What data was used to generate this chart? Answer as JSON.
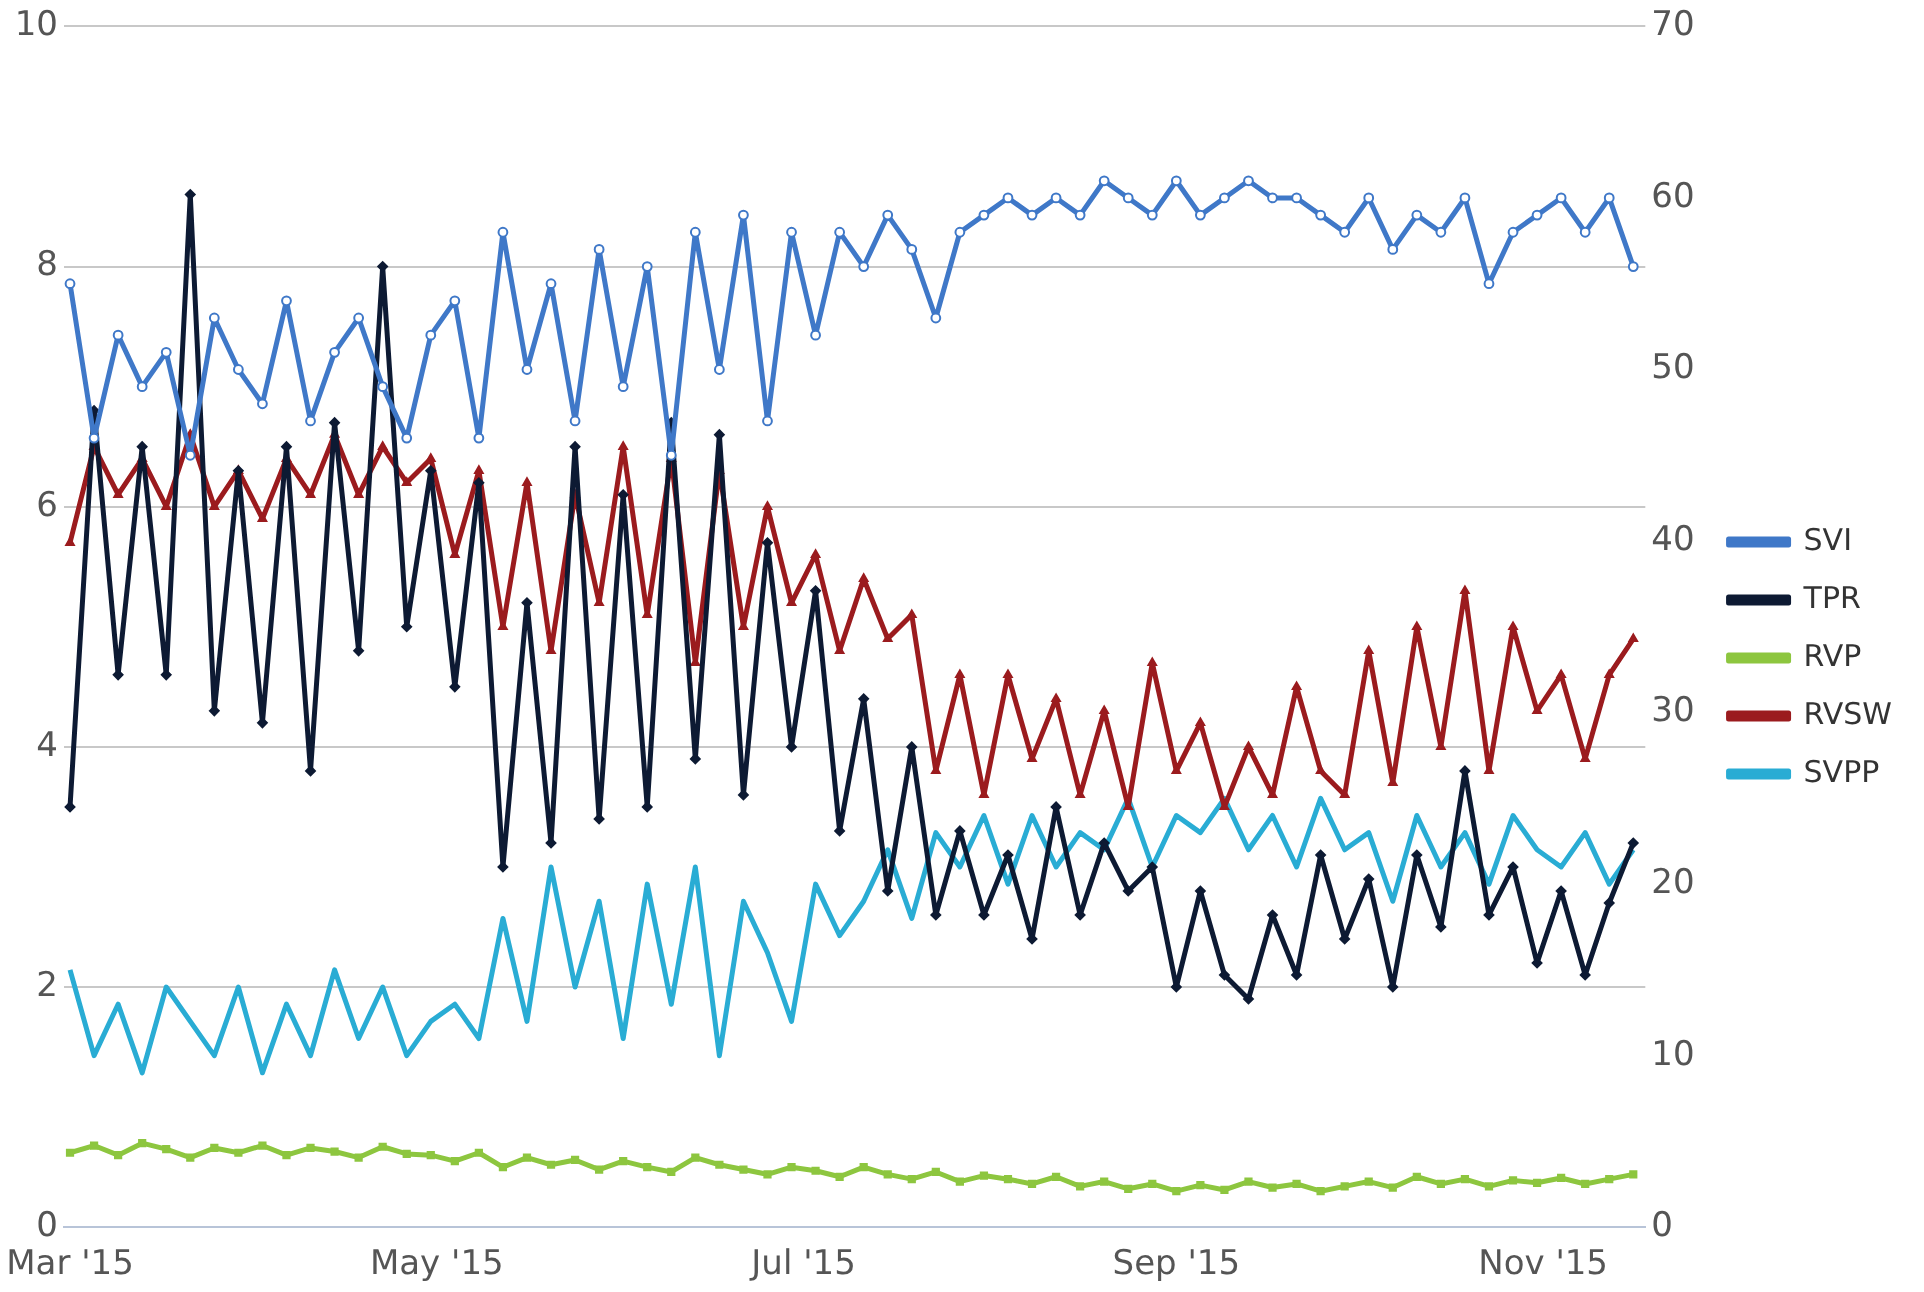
{
  "chart_data": {
    "type": "line",
    "x": [
      "2015-03-01",
      "2015-03-05",
      "2015-03-09",
      "2015-03-13",
      "2015-03-17",
      "2015-03-21",
      "2015-03-25",
      "2015-03-29",
      "2015-04-02",
      "2015-04-06",
      "2015-04-10",
      "2015-04-14",
      "2015-04-18",
      "2015-04-22",
      "2015-04-26",
      "2015-04-30",
      "2015-05-04",
      "2015-05-08",
      "2015-05-12",
      "2015-05-16",
      "2015-05-20",
      "2015-05-24",
      "2015-05-28",
      "2015-06-01",
      "2015-06-05",
      "2015-06-09",
      "2015-06-13",
      "2015-06-17",
      "2015-06-21",
      "2015-06-25",
      "2015-06-29",
      "2015-07-03",
      "2015-07-07",
      "2015-07-11",
      "2015-07-15",
      "2015-07-19",
      "2015-07-23",
      "2015-07-27",
      "2015-07-31",
      "2015-08-04",
      "2015-08-08",
      "2015-08-12",
      "2015-08-16",
      "2015-08-20",
      "2015-08-24",
      "2015-08-28",
      "2015-09-01",
      "2015-09-05",
      "2015-09-09",
      "2015-09-13",
      "2015-09-17",
      "2015-09-21",
      "2015-09-25",
      "2015-09-29",
      "2015-10-03",
      "2015-10-07",
      "2015-10-11",
      "2015-10-15",
      "2015-10-19",
      "2015-10-23",
      "2015-10-27",
      "2015-10-31",
      "2015-11-04",
      "2015-11-08",
      "2015-11-12",
      "2015-11-16"
    ],
    "series": [
      {
        "name": "SVI",
        "color": "#3f78c8",
        "axis": "y2",
        "marker": "circle",
        "values": [
          55,
          46,
          52,
          49,
          51,
          45,
          53,
          50,
          48,
          54,
          47,
          51,
          53,
          49,
          46,
          52,
          54,
          46,
          58,
          50,
          55,
          47,
          57,
          49,
          56,
          45,
          58,
          50,
          59,
          47,
          58,
          52,
          58,
          56,
          59,
          57,
          53,
          58,
          59,
          60,
          59,
          60,
          59,
          61,
          60,
          59,
          61,
          59,
          60,
          61,
          60,
          60,
          59,
          58,
          60,
          57,
          59,
          58,
          60,
          55,
          58,
          59,
          60,
          58,
          60,
          56
        ]
      },
      {
        "name": "TPR",
        "color": "#0d1a33",
        "axis": "y",
        "marker": "diamond",
        "values": [
          3.5,
          6.8,
          4.6,
          6.5,
          4.6,
          8.6,
          4.3,
          6.3,
          4.2,
          6.5,
          3.8,
          6.7,
          4.8,
          8.0,
          5.0,
          6.3,
          4.5,
          6.2,
          3.0,
          5.2,
          3.2,
          6.5,
          3.4,
          6.1,
          3.5,
          6.7,
          3.9,
          6.6,
          3.6,
          5.7,
          4.0,
          5.3,
          3.3,
          4.4,
          2.8,
          4.0,
          2.6,
          3.3,
          2.6,
          3.1,
          2.4,
          3.5,
          2.6,
          3.2,
          2.8,
          3.0,
          2.0,
          2.8,
          2.1,
          1.9,
          2.6,
          2.1,
          3.1,
          2.4,
          2.9,
          2.0,
          3.1,
          2.5,
          3.8,
          2.6,
          3.0,
          2.2,
          2.8,
          2.1,
          2.7,
          3.2
        ]
      },
      {
        "name": "RVP",
        "color": "#8dc63f",
        "axis": "y",
        "marker": "square",
        "values": [
          0.62,
          0.68,
          0.6,
          0.7,
          0.65,
          0.58,
          0.66,
          0.62,
          0.68,
          0.6,
          0.66,
          0.63,
          0.58,
          0.67,
          0.61,
          0.6,
          0.55,
          0.62,
          0.5,
          0.58,
          0.52,
          0.56,
          0.48,
          0.55,
          0.5,
          0.46,
          0.58,
          0.52,
          0.48,
          0.44,
          0.5,
          0.47,
          0.42,
          0.5,
          0.44,
          0.4,
          0.46,
          0.38,
          0.43,
          0.4,
          0.36,
          0.42,
          0.34,
          0.38,
          0.32,
          0.36,
          0.3,
          0.35,
          0.31,
          0.38,
          0.33,
          0.36,
          0.3,
          0.34,
          0.38,
          0.33,
          0.42,
          0.36,
          0.4,
          0.34,
          0.39,
          0.37,
          0.41,
          0.36,
          0.4,
          0.44
        ]
      },
      {
        "name": "RVSW",
        "color": "#9b1b1e",
        "axis": "y",
        "marker": "triangle",
        "values": [
          5.7,
          6.5,
          6.1,
          6.4,
          6.0,
          6.6,
          6.0,
          6.3,
          5.9,
          6.4,
          6.1,
          6.6,
          6.1,
          6.5,
          6.2,
          6.4,
          5.6,
          6.3,
          5.0,
          6.2,
          4.8,
          6.1,
          5.2,
          6.5,
          5.1,
          6.4,
          4.7,
          6.3,
          5.0,
          6.0,
          5.2,
          5.6,
          4.8,
          5.4,
          4.9,
          5.1,
          3.8,
          4.6,
          3.6,
          4.6,
          3.9,
          4.4,
          3.6,
          4.3,
          3.5,
          4.7,
          3.8,
          4.2,
          3.5,
          4.0,
          3.6,
          4.5,
          3.8,
          3.6,
          4.8,
          3.7,
          5.0,
          4.0,
          5.3,
          3.8,
          5.0,
          4.3,
          4.6,
          3.9,
          4.6,
          4.9
        ]
      },
      {
        "name": "SVPP",
        "color": "#29acd4",
        "axis": "y2",
        "marker": "none",
        "values": [
          15,
          10,
          13,
          9,
          14,
          12,
          10,
          14,
          9,
          13,
          10,
          15,
          11,
          14,
          10,
          12,
          13,
          11,
          18,
          12,
          21,
          14,
          19,
          11,
          20,
          13,
          21,
          10,
          19,
          16,
          12,
          20,
          17,
          19,
          22,
          18,
          23,
          21,
          24,
          20,
          24,
          21,
          23,
          22,
          25,
          21,
          24,
          23,
          25,
          22,
          24,
          21,
          25,
          22,
          23,
          19,
          24,
          21,
          23,
          20,
          24,
          22,
          21,
          23,
          20,
          22
        ]
      }
    ],
    "xlim": [
      "2015-02-28",
      "2015-11-18"
    ],
    "xticks": [
      {
        "value": "2015-03-01",
        "label": "Mar '15"
      },
      {
        "value": "2015-05-01",
        "label": "May '15"
      },
      {
        "value": "2015-07-01",
        "label": "Jul '15"
      },
      {
        "value": "2015-09-01",
        "label": "Sep '15"
      },
      {
        "value": "2015-11-01",
        "label": "Nov '15"
      }
    ],
    "ylim": [
      0,
      10
    ],
    "yticks": [
      0,
      2,
      4,
      6,
      8,
      10
    ],
    "y2lim": [
      0,
      70
    ],
    "y2ticks": [
      0,
      10,
      20,
      30,
      40,
      50,
      60,
      70
    ],
    "grid": "y",
    "legend": "right",
    "line_style": "solid"
  }
}
